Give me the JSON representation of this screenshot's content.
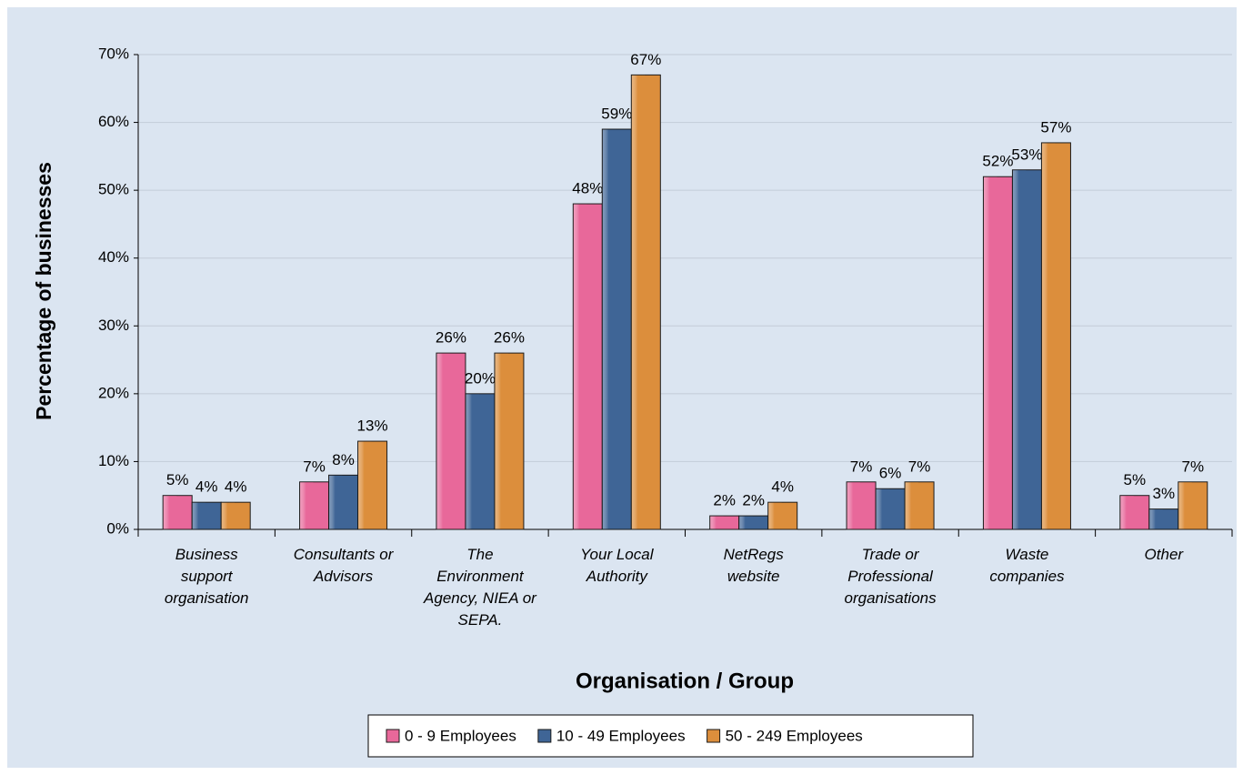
{
  "chart_data": {
    "type": "bar",
    "x_label": "Organisation / Group",
    "y_label": "Percentage of businesses",
    "categories": [
      "Business support organisation",
      "Consultants or Advisors",
      "The Environment Agency, NIEA or SEPA.",
      "Your Local Authority",
      "NetRegs website",
      "Trade or Professional organisations",
      "Waste companies",
      "Other"
    ],
    "series": [
      {
        "name": "0 - 9 Employees",
        "color": "#e8689a",
        "values": [
          5,
          7,
          26,
          48,
          2,
          7,
          52,
          5
        ],
        "value_labels": [
          "5%",
          "7%",
          "26%",
          "48%",
          "2%",
          "7%",
          "52%",
          "5%"
        ]
      },
      {
        "name": "10 - 49 Employees",
        "color": "#3f6596",
        "values": [
          4,
          8,
          20,
          59,
          2,
          6,
          53,
          3
        ],
        "value_labels": [
          "4%",
          "8%",
          "20%",
          "59%",
          "2%",
          "6%",
          "53%",
          "3%"
        ]
      },
      {
        "name": "50 - 249 Employees",
        "color": "#dc8e3c",
        "values": [
          4,
          13,
          26,
          67,
          4,
          7,
          57,
          7
        ],
        "value_labels": [
          "4%",
          "13%",
          "26%",
          "67%",
          "4%",
          "7%",
          "57%",
          "7%"
        ]
      }
    ],
    "ylim": [
      0,
      70
    ],
    "yticks": [
      {
        "value": 0,
        "label": "0%"
      },
      {
        "value": 10,
        "label": "10%"
      },
      {
        "value": 20,
        "label": "20%"
      },
      {
        "value": 30,
        "label": "30%"
      },
      {
        "value": 40,
        "label": "40%"
      },
      {
        "value": 50,
        "label": "50%"
      },
      {
        "value": 60,
        "label": "60%"
      },
      {
        "value": 70,
        "label": "70%"
      }
    ],
    "grid": true,
    "legend": "bottom"
  }
}
